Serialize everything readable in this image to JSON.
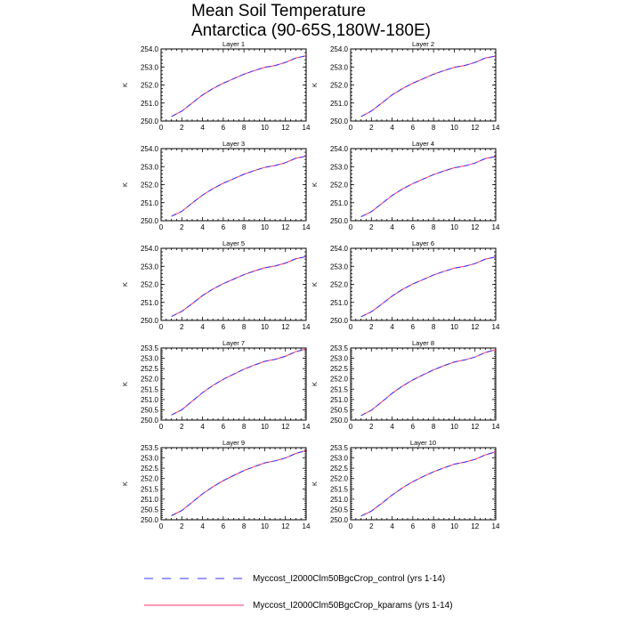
{
  "title": {
    "line1": "Mean Soil Temperature",
    "line2": "Antarctica (90-65S,180W-180E)"
  },
  "legend": [
    {
      "label": "Myccost_I2000Clm50BgcCrop_control (yrs 1-14)",
      "color": "#3333ff",
      "dash": "dashed"
    },
    {
      "label": "Myccost_I2000Clm50BgcCrop_kparams (yrs 1-14)",
      "color": "#ff3366",
      "dash": "solid"
    }
  ],
  "chart_data": [
    {
      "type": "line",
      "title": "Layer 1",
      "ylabel": "K",
      "xlim": [
        0,
        14
      ],
      "ylim": [
        250.0,
        254.0
      ],
      "xticks": [
        "0",
        "2",
        "4",
        "6",
        "8",
        "10",
        "12",
        "14"
      ],
      "yticks": [
        "250.0",
        "251.0",
        "252.0",
        "253.0",
        "254.0"
      ],
      "x": [
        1,
        2,
        3,
        4,
        5,
        6,
        7,
        8,
        9,
        10,
        11,
        12,
        13,
        14
      ],
      "series": [
        {
          "name": "Myccost_I2000Clm50BgcCrop_control (yrs 1-14)",
          "values": [
            250.25,
            250.55,
            251.0,
            251.45,
            251.8,
            252.1,
            252.35,
            252.6,
            252.8,
            252.98,
            253.08,
            253.25,
            253.5,
            253.62
          ]
        },
        {
          "name": "Myccost_I2000Clm50BgcCrop_kparams (yrs 1-14)",
          "values": [
            250.25,
            250.55,
            251.0,
            251.45,
            251.8,
            252.1,
            252.35,
            252.6,
            252.8,
            252.98,
            253.08,
            253.25,
            253.5,
            253.62
          ]
        }
      ]
    },
    {
      "type": "line",
      "title": "Layer 2",
      "ylabel": "K",
      "xlim": [
        0,
        14
      ],
      "ylim": [
        250.0,
        254.0
      ],
      "xticks": [
        "0",
        "2",
        "4",
        "6",
        "8",
        "10",
        "12",
        "14"
      ],
      "yticks": [
        "250.0",
        "251.0",
        "252.0",
        "253.0",
        "254.0"
      ],
      "x": [
        1,
        2,
        3,
        4,
        5,
        6,
        7,
        8,
        9,
        10,
        11,
        12,
        13,
        14
      ],
      "series": [
        {
          "name": "Myccost_I2000Clm50BgcCrop_control (yrs 1-14)",
          "values": [
            250.25,
            250.55,
            251.0,
            251.45,
            251.8,
            252.1,
            252.35,
            252.6,
            252.8,
            252.98,
            253.08,
            253.25,
            253.5,
            253.6
          ]
        },
        {
          "name": "Myccost_I2000Clm50BgcCrop_kparams (yrs 1-14)",
          "values": [
            250.25,
            250.55,
            251.0,
            251.45,
            251.8,
            252.1,
            252.35,
            252.6,
            252.8,
            252.98,
            253.08,
            253.25,
            253.5,
            253.6
          ]
        }
      ]
    },
    {
      "type": "line",
      "title": "Layer 3",
      "ylabel": "K",
      "xlim": [
        0,
        14
      ],
      "ylim": [
        250.0,
        254.0
      ],
      "xticks": [
        "0",
        "2",
        "4",
        "6",
        "8",
        "10",
        "12",
        "14"
      ],
      "yticks": [
        "250.0",
        "251.0",
        "252.0",
        "253.0",
        "254.0"
      ],
      "x": [
        1,
        2,
        3,
        4,
        5,
        6,
        7,
        8,
        9,
        10,
        11,
        12,
        13,
        14
      ],
      "series": [
        {
          "name": "Myccost_I2000Clm50BgcCrop_control (yrs 1-14)",
          "values": [
            250.25,
            250.52,
            250.98,
            251.42,
            251.78,
            252.08,
            252.33,
            252.58,
            252.78,
            252.96,
            253.06,
            253.22,
            253.47,
            253.58
          ]
        },
        {
          "name": "Myccost_I2000Clm50BgcCrop_kparams (yrs 1-14)",
          "values": [
            250.25,
            250.52,
            250.98,
            251.42,
            251.78,
            252.08,
            252.33,
            252.58,
            252.78,
            252.96,
            253.06,
            253.22,
            253.47,
            253.58
          ]
        }
      ]
    },
    {
      "type": "line",
      "title": "Layer 4",
      "ylabel": "K",
      "xlim": [
        0,
        14
      ],
      "ylim": [
        250.0,
        254.0
      ],
      "xticks": [
        "0",
        "2",
        "4",
        "6",
        "8",
        "10",
        "12",
        "14"
      ],
      "yticks": [
        "250.0",
        "251.0",
        "252.0",
        "253.0",
        "254.0"
      ],
      "x": [
        1,
        2,
        3,
        4,
        5,
        6,
        7,
        8,
        9,
        10,
        11,
        12,
        13,
        14
      ],
      "series": [
        {
          "name": "Myccost_I2000Clm50BgcCrop_control (yrs 1-14)",
          "values": [
            250.22,
            250.5,
            250.95,
            251.4,
            251.76,
            252.06,
            252.31,
            252.56,
            252.76,
            252.94,
            253.04,
            253.2,
            253.45,
            253.56
          ]
        },
        {
          "name": "Myccost_I2000Clm50BgcCrop_kparams (yrs 1-14)",
          "values": [
            250.22,
            250.5,
            250.95,
            251.4,
            251.76,
            252.06,
            252.31,
            252.56,
            252.76,
            252.94,
            253.04,
            253.2,
            253.45,
            253.56
          ]
        }
      ]
    },
    {
      "type": "line",
      "title": "Layer 5",
      "ylabel": "K",
      "xlim": [
        0,
        14
      ],
      "ylim": [
        250.0,
        254.0
      ],
      "xticks": [
        "0",
        "2",
        "4",
        "6",
        "8",
        "10",
        "12",
        "14"
      ],
      "yticks": [
        "250.0",
        "251.0",
        "252.0",
        "253.0",
        "254.0"
      ],
      "x": [
        1,
        2,
        3,
        4,
        5,
        6,
        7,
        8,
        9,
        10,
        11,
        12,
        13,
        14
      ],
      "series": [
        {
          "name": "Myccost_I2000Clm50BgcCrop_control (yrs 1-14)",
          "values": [
            250.22,
            250.5,
            250.93,
            251.38,
            251.74,
            252.04,
            252.29,
            252.54,
            252.74,
            252.92,
            253.02,
            253.18,
            253.42,
            253.54
          ]
        },
        {
          "name": "Myccost_I2000Clm50BgcCrop_kparams (yrs 1-14)",
          "values": [
            250.22,
            250.5,
            250.93,
            251.38,
            251.74,
            252.04,
            252.29,
            252.54,
            252.74,
            252.92,
            253.02,
            253.18,
            253.42,
            253.54
          ]
        }
      ]
    },
    {
      "type": "line",
      "title": "Layer 6",
      "ylabel": "K",
      "xlim": [
        0,
        14
      ],
      "ylim": [
        250.0,
        254.0
      ],
      "xticks": [
        "0",
        "2",
        "4",
        "6",
        "8",
        "10",
        "12",
        "14"
      ],
      "yticks": [
        "250.0",
        "251.0",
        "252.0",
        "253.0",
        "254.0"
      ],
      "x": [
        1,
        2,
        3,
        4,
        5,
        6,
        7,
        8,
        9,
        10,
        11,
        12,
        13,
        14
      ],
      "series": [
        {
          "name": "Myccost_I2000Clm50BgcCrop_control (yrs 1-14)",
          "values": [
            250.2,
            250.48,
            250.9,
            251.35,
            251.72,
            252.02,
            252.27,
            252.52,
            252.72,
            252.9,
            253.0,
            253.15,
            253.4,
            253.52
          ]
        },
        {
          "name": "Myccost_I2000Clm50BgcCrop_kparams (yrs 1-14)",
          "values": [
            250.2,
            250.48,
            250.9,
            251.35,
            251.72,
            252.02,
            252.27,
            252.52,
            252.72,
            252.9,
            253.0,
            253.15,
            253.4,
            253.52
          ]
        }
      ]
    },
    {
      "type": "line",
      "title": "Layer 7",
      "ylabel": "K",
      "xlim": [
        0,
        14
      ],
      "ylim": [
        250.0,
        253.5
      ],
      "xticks": [
        "0",
        "2",
        "4",
        "6",
        "8",
        "10",
        "12",
        "14"
      ],
      "yticks": [
        "250.0",
        "250.5",
        "251.0",
        "251.5",
        "252.0",
        "252.5",
        "253.0",
        "253.5"
      ],
      "x": [
        1,
        2,
        3,
        4,
        5,
        6,
        7,
        8,
        9,
        10,
        11,
        12,
        13,
        14
      ],
      "series": [
        {
          "name": "Myccost_I2000Clm50BgcCrop_control (yrs 1-14)",
          "values": [
            250.25,
            250.5,
            250.92,
            251.33,
            251.68,
            251.98,
            252.23,
            252.47,
            252.67,
            252.85,
            252.95,
            253.1,
            253.32,
            253.45
          ]
        },
        {
          "name": "Myccost_I2000Clm50BgcCrop_kparams (yrs 1-14)",
          "values": [
            250.25,
            250.5,
            250.92,
            251.33,
            251.68,
            251.98,
            252.23,
            252.47,
            252.67,
            252.85,
            252.95,
            253.1,
            253.32,
            253.45
          ]
        }
      ]
    },
    {
      "type": "line",
      "title": "Layer 8",
      "ylabel": "K",
      "xlim": [
        0,
        14
      ],
      "ylim": [
        250.0,
        253.5
      ],
      "xticks": [
        "0",
        "2",
        "4",
        "6",
        "8",
        "10",
        "12",
        "14"
      ],
      "yticks": [
        "250.0",
        "250.5",
        "251.0",
        "251.5",
        "252.0",
        "252.5",
        "253.0",
        "253.5"
      ],
      "x": [
        1,
        2,
        3,
        4,
        5,
        6,
        7,
        8,
        9,
        10,
        11,
        12,
        13,
        14
      ],
      "series": [
        {
          "name": "Myccost_I2000Clm50BgcCrop_control (yrs 1-14)",
          "values": [
            250.22,
            250.48,
            250.88,
            251.3,
            251.65,
            251.95,
            252.2,
            252.44,
            252.64,
            252.82,
            252.92,
            253.06,
            253.28,
            253.42
          ]
        },
        {
          "name": "Myccost_I2000Clm50BgcCrop_kparams (yrs 1-14)",
          "values": [
            250.22,
            250.48,
            250.88,
            251.3,
            251.65,
            251.95,
            252.2,
            252.44,
            252.64,
            252.82,
            252.92,
            253.06,
            253.28,
            253.42
          ]
        }
      ]
    },
    {
      "type": "line",
      "title": "Layer 9",
      "ylabel": "K",
      "xlim": [
        0,
        14
      ],
      "ylim": [
        250.0,
        253.5
      ],
      "xticks": [
        "0",
        "2",
        "4",
        "6",
        "8",
        "10",
        "12",
        "14"
      ],
      "yticks": [
        "250.0",
        "250.5",
        "251.0",
        "251.5",
        "252.0",
        "252.5",
        "253.0",
        "253.5"
      ],
      "x": [
        1,
        2,
        3,
        4,
        5,
        6,
        7,
        8,
        9,
        10,
        11,
        12,
        13,
        14
      ],
      "series": [
        {
          "name": "Myccost_I2000Clm50BgcCrop_control (yrs 1-14)",
          "values": [
            250.2,
            250.45,
            250.85,
            251.26,
            251.6,
            251.9,
            252.15,
            252.39,
            252.58,
            252.76,
            252.86,
            253.0,
            253.22,
            253.36
          ]
        },
        {
          "name": "Myccost_I2000Clm50BgcCrop_kparams (yrs 1-14)",
          "values": [
            250.2,
            250.45,
            250.85,
            251.26,
            251.6,
            251.9,
            252.15,
            252.39,
            252.58,
            252.76,
            252.86,
            253.0,
            253.22,
            253.36
          ]
        }
      ]
    },
    {
      "type": "line",
      "title": "Layer 10",
      "ylabel": "K",
      "xlim": [
        0,
        14
      ],
      "ylim": [
        250.0,
        253.5
      ],
      "xticks": [
        "0",
        "2",
        "4",
        "6",
        "8",
        "10",
        "12",
        "14"
      ],
      "yticks": [
        "250.0",
        "250.5",
        "251.0",
        "251.5",
        "252.0",
        "252.5",
        "253.0",
        "253.5"
      ],
      "x": [
        1,
        2,
        3,
        4,
        5,
        6,
        7,
        8,
        9,
        10,
        11,
        12,
        13,
        14
      ],
      "series": [
        {
          "name": "Myccost_I2000Clm50BgcCrop_control (yrs 1-14)",
          "values": [
            250.18,
            250.42,
            250.8,
            251.2,
            251.55,
            251.85,
            252.1,
            252.33,
            252.52,
            252.7,
            252.8,
            252.93,
            253.15,
            253.3
          ]
        },
        {
          "name": "Myccost_I2000Clm50BgcCrop_kparams (yrs 1-14)",
          "values": [
            250.18,
            250.42,
            250.8,
            251.2,
            251.55,
            251.85,
            252.1,
            252.33,
            252.52,
            252.7,
            252.8,
            252.93,
            253.15,
            253.3
          ]
        }
      ]
    }
  ]
}
